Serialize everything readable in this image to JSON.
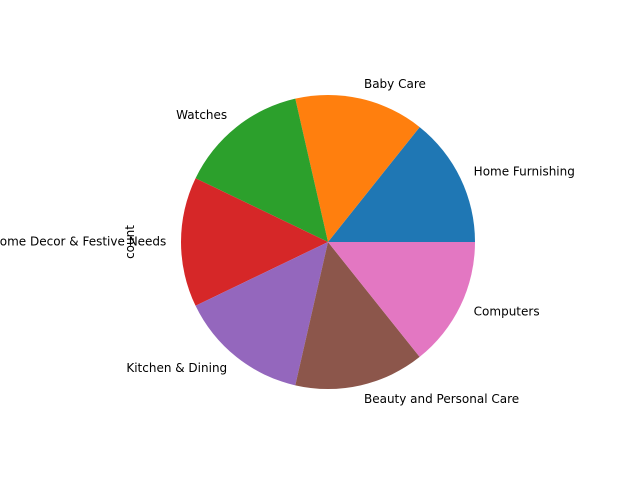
{
  "chart_data": {
    "type": "pie",
    "ylabel": "count",
    "categories": [
      "Home Furnishing",
      "Baby Care",
      "Watches",
      "Home Decor & Festive Needs",
      "Kitchen & Dining",
      "Beauty and Personal Care",
      "Computers"
    ],
    "values": [
      1,
      1,
      1,
      1,
      1,
      1,
      1
    ],
    "colors": [
      "#1f77b4",
      "#ff7f0e",
      "#2ca02c",
      "#d62728",
      "#9467bd",
      "#8c564b",
      "#e377c2"
    ],
    "start_angle_deg": 0,
    "direction": "counterclockwise",
    "legend": "none"
  }
}
